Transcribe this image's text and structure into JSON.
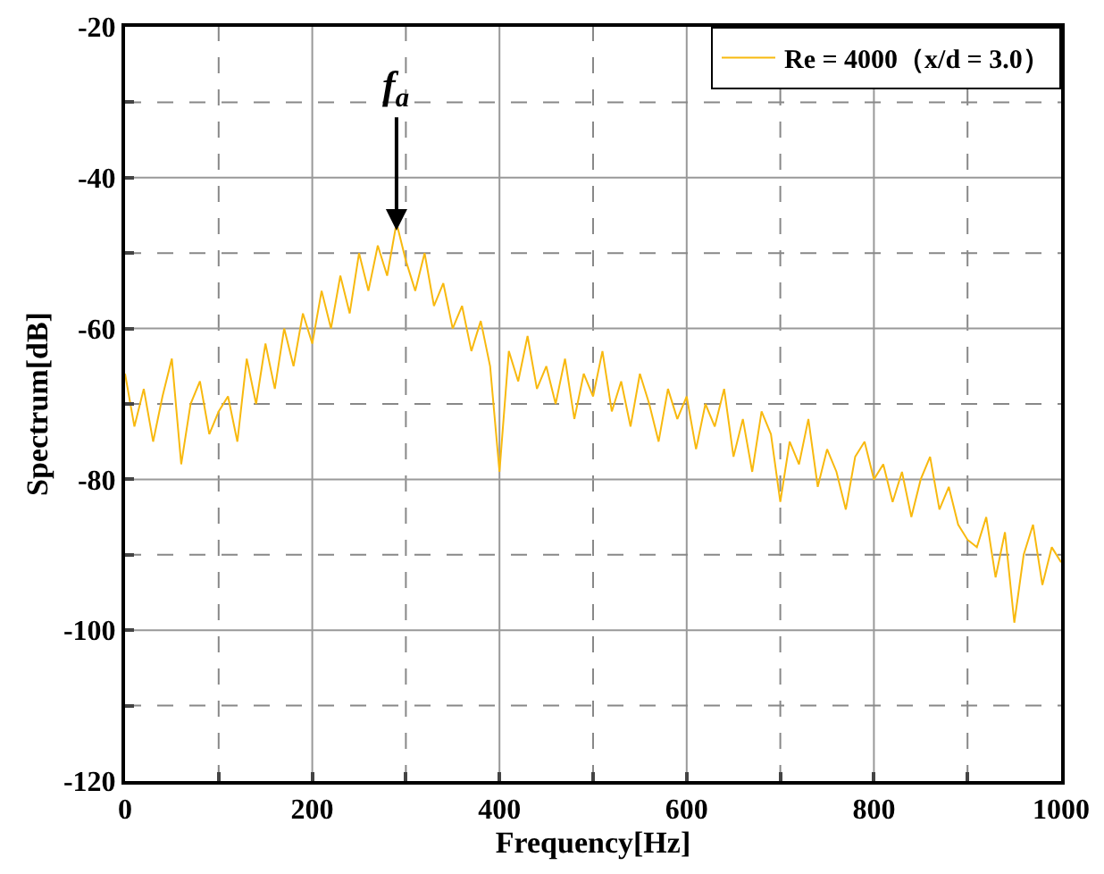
{
  "chart_data": {
    "type": "line",
    "xlabel": "Frequency[Hz]",
    "ylabel": "Spectrum[dB]",
    "xlim": [
      0,
      1000
    ],
    "ylim": [
      -120,
      -20
    ],
    "xticks": [
      0,
      {
        "value": 100,
        "label": null
      },
      200,
      {
        "value": 300,
        "label": null
      },
      400,
      {
        "value": 500,
        "label": null
      },
      600,
      {
        "value": 700,
        "label": null
      },
      800,
      {
        "value": 900,
        "label": null
      },
      1000
    ],
    "yticks": [
      -120,
      {
        "value": -110,
        "label": null
      },
      -100,
      {
        "value": -90,
        "label": null
      },
      -80,
      {
        "value": -70,
        "label": null
      },
      -60,
      {
        "value": -50,
        "label": null
      },
      -40,
      {
        "value": -30,
        "label": null
      },
      -20
    ],
    "grid": true,
    "legend": "top right",
    "marker": "none",
    "line_style": "solid",
    "annotations": [
      {
        "text": "f$_{a}$",
        "x": 290,
        "y": -47
      }
    ],
    "x": [
      0,
      10,
      20,
      30,
      40,
      50,
      60,
      70,
      80,
      90,
      100,
      110,
      120,
      130,
      140,
      150,
      160,
      170,
      180,
      190,
      200,
      210,
      220,
      230,
      240,
      250,
      260,
      270,
      280,
      290,
      300,
      310,
      320,
      330,
      340,
      350,
      360,
      370,
      380,
      390,
      400,
      410,
      420,
      430,
      440,
      450,
      460,
      470,
      480,
      490,
      500,
      510,
      520,
      530,
      540,
      550,
      560,
      570,
      580,
      590,
      600,
      610,
      620,
      630,
      640,
      650,
      660,
      670,
      680,
      690,
      700,
      710,
      720,
      730,
      740,
      750,
      760,
      770,
      780,
      790,
      800,
      810,
      820,
      830,
      840,
      850,
      860,
      870,
      880,
      890,
      900,
      910,
      920,
      930,
      940,
      950,
      960,
      970,
      980,
      990,
      1000
    ],
    "series": [
      {
        "name": "Re = 4000（x/d = 3.0）",
        "color": "#f8b90f",
        "values": [
          -66,
          -73,
          -68,
          -75,
          -69,
          -64,
          -78,
          -70,
          -67,
          -74,
          -71,
          -69,
          -75,
          -64,
          -70,
          -62,
          -68,
          -60,
          -65,
          -58,
          -62,
          -55,
          -60,
          -53,
          -58,
          -50,
          -55,
          -49,
          -53,
          -46,
          -51,
          -55,
          -50,
          -57,
          -54,
          -60,
          -57,
          -63,
          -59,
          -65,
          -79,
          -63,
          -67,
          -61,
          -68,
          -65,
          -70,
          -64,
          -72,
          -66,
          -69,
          -63,
          -71,
          -67,
          -73,
          -66,
          -70,
          -75,
          -68,
          -72,
          -69,
          -76,
          -70,
          -73,
          -68,
          -77,
          -72,
          -79,
          -71,
          -74,
          -83,
          -75,
          -78,
          -72,
          -81,
          -76,
          -79,
          -84,
          -77,
          -75,
          -80,
          -78,
          -83,
          -79,
          -85,
          -80,
          -77,
          -84,
          -81,
          -86,
          -88,
          -89,
          -85,
          -93,
          -87,
          -99,
          -90,
          -86,
          -94,
          -89,
          -91
        ]
      }
    ]
  }
}
